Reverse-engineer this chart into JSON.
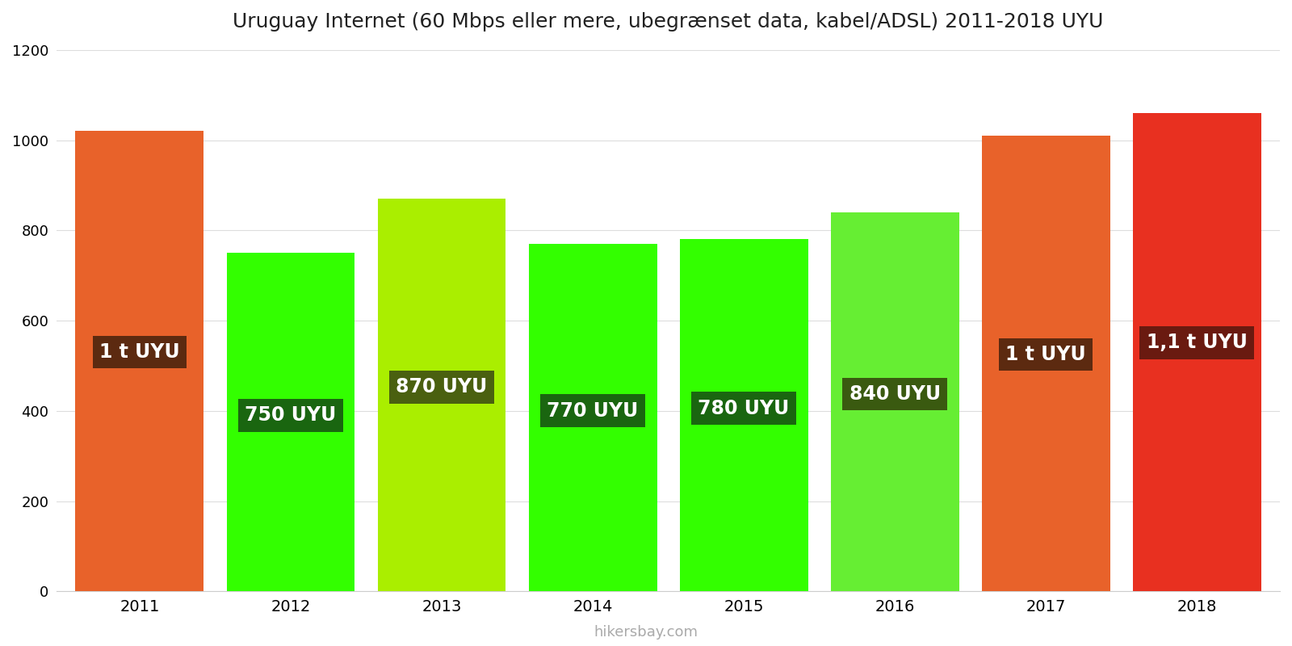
{
  "title": "Uruguay Internet (60 Mbps eller mere, ubegrænset data, kabel/ADSL) 2011-2018 UYU",
  "years": [
    2011,
    2012,
    2013,
    2014,
    2015,
    2016,
    2017,
    2018
  ],
  "values": [
    1020,
    750,
    870,
    770,
    780,
    840,
    1010,
    1060
  ],
  "bar_colors": [
    "#E8622A",
    "#33FF00",
    "#AAEE00",
    "#33FF00",
    "#33FF00",
    "#66EE33",
    "#E8622A",
    "#E83020"
  ],
  "label_texts": [
    "1 t UYU",
    "750 UYU",
    "870 UYU",
    "770 UYU",
    "780 UYU",
    "840 UYU",
    "1 t UYU",
    "1,1 t UYU"
  ],
  "label_box_colors": [
    "#5C2A10",
    "#1A6610",
    "#4A6010",
    "#1A6610",
    "#1A6610",
    "#3A5A10",
    "#5C2A10",
    "#6A1A10"
  ],
  "ylim": [
    0,
    1200
  ],
  "yticks": [
    0,
    200,
    400,
    600,
    800,
    1000,
    1200
  ],
  "background_color": "#ffffff",
  "watermark": "hikersbay.com",
  "title_fontsize": 18,
  "label_fontsize": 17,
  "watermark_fontsize": 13
}
